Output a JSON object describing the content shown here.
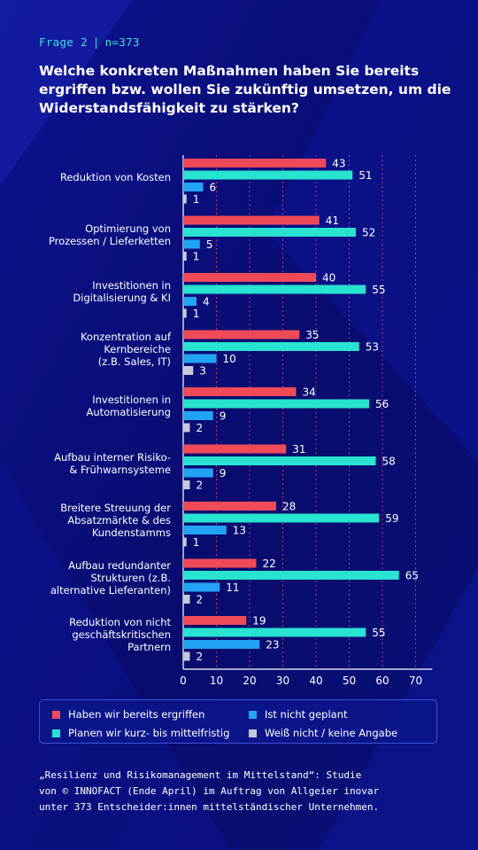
{
  "header": {
    "question": "Frage 2",
    "sample": "n=373"
  },
  "title": "Welche konkreten Maßnahmen haben Sie bereits ergriffen bzw. wollen Sie zukünftig umsetzen, um die Widerstandsfähigkeit zu stärken?",
  "colors": {
    "background": "#0a0d72",
    "accent": "#35e4d9",
    "series_red": "#f04a58",
    "series_teal": "#27e3cf",
    "series_blue": "#22a3f5",
    "series_grey": "#c8c8d8"
  },
  "chart_data": {
    "type": "bar",
    "orientation": "horizontal",
    "categories": [
      "Reduktion von Kosten",
      "Optimierung von Prozessen / Lieferketten",
      "Investitionen in Digitalisierung & KI",
      "Konzentration auf Kernbereiche (z.B. Sales, IT)",
      "Investitionen in Automatisierung",
      "Aufbau interner Risiko- & Frühwarnsysteme",
      "Breitere Streuung der Absatzmärkte & des Kundenstamms",
      "Aufbau redundanter Strukturen (z.B. alternative Lieferanten)",
      "Reduktion von nicht geschäftskritischen Partnern"
    ],
    "category_lines": [
      [
        "Reduktion von Kosten"
      ],
      [
        "Optimierung von",
        "Prozessen / Lieferketten"
      ],
      [
        "Investitionen in",
        "Digitalisierung & KI"
      ],
      [
        "Konzentration auf",
        "Kernbereiche",
        "(z.B. Sales, IT)"
      ],
      [
        "Investitionen in",
        "Automatisierung"
      ],
      [
        "Aufbau interner Risiko-",
        "& Frühwarnsysteme"
      ],
      [
        "Breitere Streuung der",
        "Absatzmärkte & des",
        "Kundenstamms"
      ],
      [
        "Aufbau redundanter",
        "Strukturen (z.B.",
        "alternative Lieferanten)"
      ],
      [
        "Reduktion von nicht",
        "geschäftskritischen",
        "Partnern"
      ]
    ],
    "series": [
      {
        "name": "Haben wir bereits ergriffen",
        "color": "#f04a58",
        "values": [
          43,
          41,
          40,
          35,
          34,
          31,
          28,
          22,
          19
        ]
      },
      {
        "name": "Planen wir kurz- bis mittelfristig",
        "color": "#27e3cf",
        "values": [
          51,
          52,
          55,
          53,
          56,
          58,
          59,
          65,
          55
        ]
      },
      {
        "name": "Ist nicht geplant",
        "color": "#22a3f5",
        "values": [
          6,
          5,
          4,
          10,
          9,
          9,
          13,
          11,
          23
        ]
      },
      {
        "name": "Weiß nicht / keine Angabe",
        "color": "#c8c8d8",
        "values": [
          1,
          1,
          1,
          3,
          2,
          2,
          1,
          2,
          2
        ]
      }
    ],
    "xticks": [
      0,
      10,
      20,
      30,
      40,
      50,
      60,
      70
    ],
    "xlim": [
      0,
      75
    ],
    "xlabel": "",
    "ylabel": "",
    "grid": "vertical dotted",
    "legend_position": "bottom"
  },
  "legend": {
    "items": [
      "Haben wir bereits ergriffen",
      "Ist nicht geplant",
      "Planen wir kurz- bis mittelfristig",
      "Weiß nicht / keine Angabe"
    ]
  },
  "footnote": [
    "„Resilienz und Risikomanagement im Mittelstand“: Studie",
    "von © INNOFACT (Ende April) im Auftrag von Allgeier inovar",
    "unter 373 Entscheider:innen mittelständischer Unternehmen."
  ]
}
